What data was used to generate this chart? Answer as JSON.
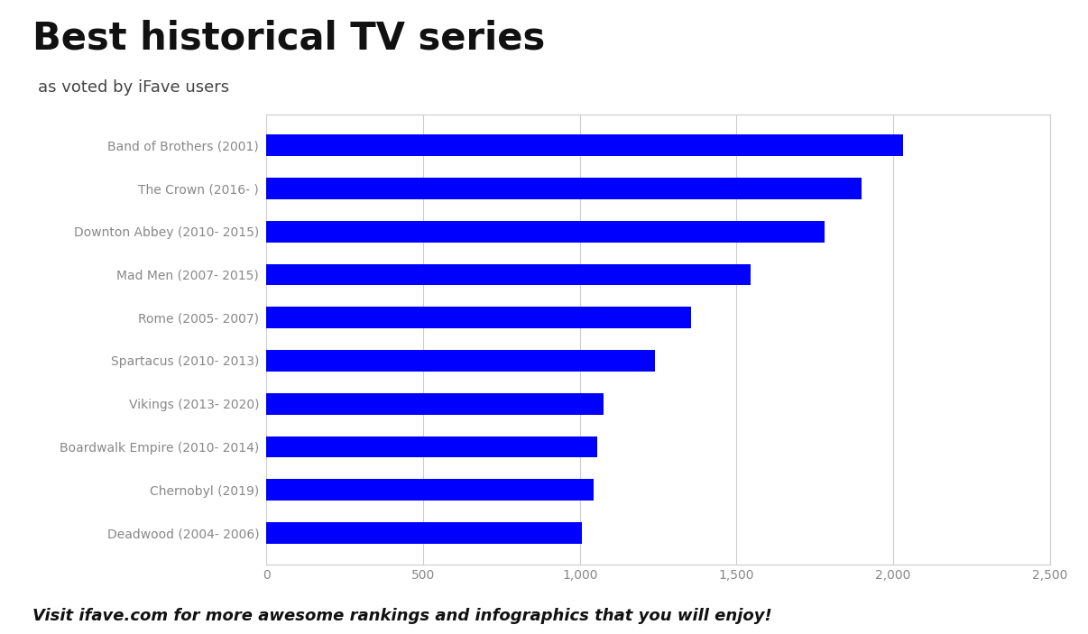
{
  "title": "Best historical TV series",
  "subtitle": "as voted by iFave users",
  "footer": "Visit ifave.com for more awesome rankings and infographics that you will enjoy!",
  "categories": [
    "Band of Brothers (2001)",
    "The Crown (2016- )",
    "Downton Abbey (2010- 2015)",
    "Mad Men (2007- 2015)",
    "Rome (2005- 2007)",
    "Spartacus (2010- 2013)",
    "Vikings (2013- 2020)",
    "Boardwalk Empire (2010- 2014)",
    "Chernobyl (2019)",
    "Deadwood (2004- 2006)"
  ],
  "values": [
    2030,
    1900,
    1780,
    1545,
    1355,
    1240,
    1075,
    1055,
    1045,
    1005
  ],
  "bar_color": "#0000ff",
  "background_color": "#ffffff",
  "xlim": [
    0,
    2500
  ],
  "xticks": [
    0,
    500,
    1000,
    1500,
    2000,
    2500
  ],
  "xtick_labels": [
    "0",
    "500",
    "1,000",
    "1,500",
    "2,000",
    "2,500"
  ],
  "title_fontsize": 30,
  "subtitle_fontsize": 13,
  "footer_fontsize": 13,
  "label_fontsize": 10,
  "tick_fontsize": 10,
  "label_color": "#888888",
  "tick_color": "#888888",
  "grid_color": "#cccccc",
  "bar_height": 0.5
}
